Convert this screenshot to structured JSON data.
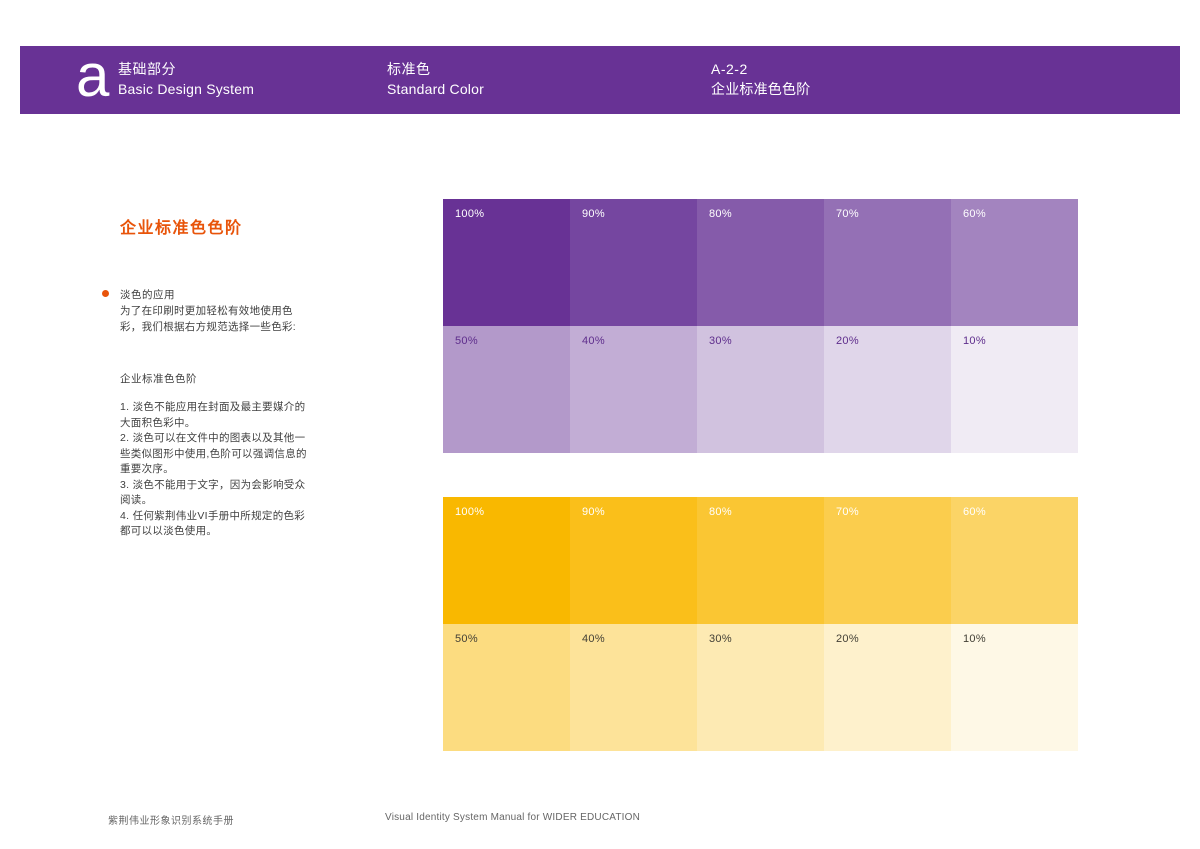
{
  "header": {
    "bg": "#683295",
    "logo_letter": "a",
    "sections": [
      {
        "zh": "基础部分",
        "en": "Basic Design System"
      },
      {
        "zh": "标准色",
        "en": "Standard Color"
      },
      {
        "zh": "A-2-2",
        "en": "企业标准色色阶"
      }
    ]
  },
  "sidebar": {
    "title": "企业标准色色阶",
    "title_color": "#e8540a",
    "bullet_color": "#e8540a",
    "bullet_label": "淡色的应用",
    "intro": "为了在印刷时更加轻松有效地使用色彩，我们根据右方规范选择一些色彩:",
    "subheading": "企业标准色色阶",
    "notes": [
      "1. 淡色不能应用在封面及最主要媒介的大面积色彩中。",
      "2. 淡色可以在文件中的图表以及其他一些类似图形中使用,色阶可以强调信息的重要次序。",
      "3. 淡色不能用于文字，因为会影响受众阅读。",
      "4. 任何紫荆伟业VI手册中所规定的色彩都可以以淡色使用。"
    ]
  },
  "scales": [
    {
      "name": "purple",
      "rows": [
        {
          "label_color": "#ffffff",
          "cells": [
            {
              "label": "100%",
              "color": "#683295"
            },
            {
              "label": "90%",
              "color": "#7546A0"
            },
            {
              "label": "80%",
              "color": "#855BAA"
            },
            {
              "label": "70%",
              "color": "#9470B5"
            },
            {
              "label": "60%",
              "color": "#A384BF"
            }
          ]
        },
        {
          "label_color": "#5e2d8c",
          "cells": [
            {
              "label": "50%",
              "color": "#B399CA"
            },
            {
              "label": "40%",
              "color": "#C2ADD5"
            },
            {
              "label": "30%",
              "color": "#D1C2DF"
            },
            {
              "label": "20%",
              "color": "#E0D6EA"
            },
            {
              "label": "10%",
              "color": "#F0EBF4"
            }
          ]
        }
      ]
    },
    {
      "name": "yellow",
      "rows": [
        {
          "label_color": "#ffffff",
          "cells": [
            {
              "label": "100%",
              "color": "#F9B800"
            },
            {
              "label": "90%",
              "color": "#FABF1A"
            },
            {
              "label": "80%",
              "color": "#FAC633"
            },
            {
              "label": "70%",
              "color": "#FBCD4D"
            },
            {
              "label": "60%",
              "color": "#FBD466"
            }
          ]
        },
        {
          "label_color": "#434036",
          "cells": [
            {
              "label": "50%",
              "color": "#FCDC80"
            },
            {
              "label": "40%",
              "color": "#FDE399"
            },
            {
              "label": "30%",
              "color": "#FDEAB3"
            },
            {
              "label": "20%",
              "color": "#FEF1CC"
            },
            {
              "label": "10%",
              "color": "#FEF8E6"
            }
          ]
        }
      ]
    }
  ],
  "footer": {
    "left": "紫荆伟业形象识别系统手册",
    "center": "Visual Identity System Manual for WIDER EDUCATION"
  }
}
